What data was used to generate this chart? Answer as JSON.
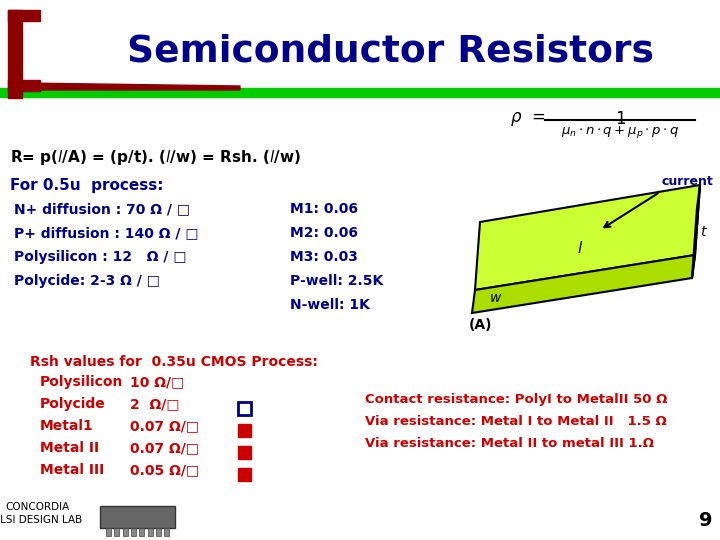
{
  "title": "Semiconductor Resistors",
  "title_color": "#00008B",
  "bg_color": "#FFFFFF",
  "bracket_color": "#8B0000",
  "green_bar_color": "#00CC00",
  "formula_main": "R= p(ℓ/A) = (p/t). (ℓ/w) = Rsh. (ℓ/w)",
  "for_process": "For 0.5u  process:",
  "left_col": [
    "N+ diffusion : 70 Ω / □",
    "P+ diffusion : 140 Ω / □",
    "Polysilicon : 12   Ω / □",
    "Polycide: 2-3 Ω / □"
  ],
  "right_col": [
    "M1: 0.06",
    "M2: 0.06",
    "M3: 0.03",
    "P-well: 2.5K",
    "N-well: 1K"
  ],
  "rsh_title": "Rsh values for  0.35u CMOS Process:",
  "rsh_rows": [
    [
      "Polysilicon",
      "10 Ω/□",
      "none"
    ],
    [
      "Polycide",
      "2  Ω/□",
      "open_square"
    ],
    [
      "Metal1",
      "0.07 Ω/□",
      "filled_square"
    ],
    [
      "Metal II",
      "0.07 Ω/□",
      "filled_square"
    ],
    [
      "Metal III",
      "0.05 Ω/□",
      "filled_square"
    ]
  ],
  "contact_lines": [
    "Contact resistance: PolyI to MetalII 50 Ω",
    "Via resistance: Metal I to Metal II   1.5 Ω",
    "Via resistance: Metal II to metal III 1.Ω"
  ],
  "page_num": "9",
  "concordia_text": "CONCORDIA\nVLSI DESIGN LAB",
  "text_blue": "#00008B",
  "text_red": "#CC0000"
}
